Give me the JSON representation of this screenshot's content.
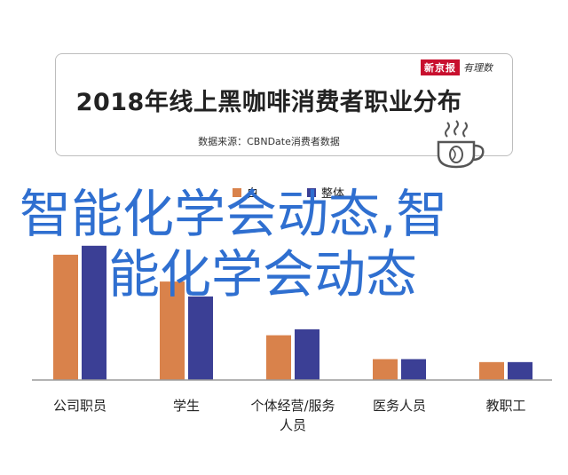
{
  "header": {
    "brand_name": "新京报",
    "brand_sub": "有理数",
    "title": "2018年线上黑咖啡消费者职业分布",
    "source": "数据来源：CBNDate消费者数据"
  },
  "overlay": {
    "line1": "智能化学会动态,智",
    "line2": "能化学会动态"
  },
  "legend": {
    "series1_label": "白",
    "series2_label": "整体"
  },
  "colors": {
    "series1": "#d9824b",
    "series2": "#3b3f95",
    "overlay_text": "#2f6fd0"
  },
  "chart_data": {
    "type": "bar",
    "categories": [
      "公司职员",
      "学生",
      "个体经营/服务人员",
      "医务人员",
      "教职工"
    ],
    "category_lines": [
      [
        "公司职员"
      ],
      [
        "学生"
      ],
      [
        "个体经营/服务",
        "人员"
      ],
      [
        "医务人员"
      ],
      [
        "教职工"
      ]
    ],
    "series": [
      {
        "name": "白",
        "values": [
          42,
          33,
          15,
          7,
          6
        ]
      },
      {
        "name": "整体",
        "values": [
          45,
          28,
          17,
          7,
          6
        ]
      }
    ],
    "ylim": [
      0,
      50
    ],
    "legend_position": "top",
    "grid": false
  }
}
